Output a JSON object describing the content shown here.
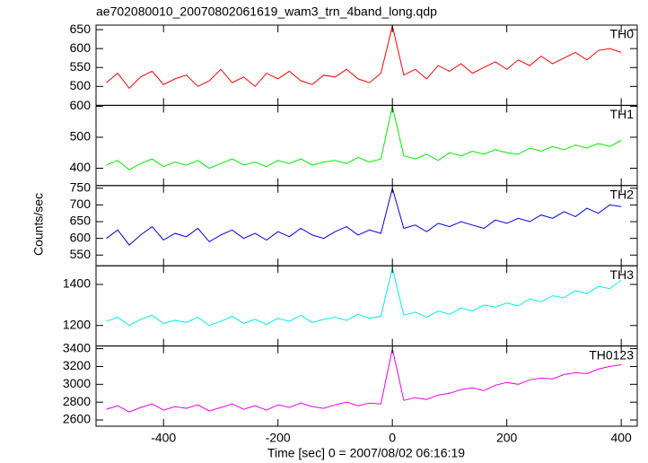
{
  "chart_data": {
    "type": "line",
    "title": "ae702080010_20070802061619_wam3_trn_4band_long.qdp",
    "xlabel": "Time [sec] 0 = 2007/08/02 06:16:19",
    "ylabel": "Counts/sec",
    "xlim": [
      -518,
      428
    ],
    "xticks": [
      -400,
      -200,
      0,
      200,
      400
    ],
    "x": [
      -500,
      -480,
      -460,
      -440,
      -420,
      -400,
      -380,
      -360,
      -340,
      -320,
      -300,
      -280,
      -260,
      -240,
      -220,
      -200,
      -180,
      -160,
      -140,
      -120,
      -100,
      -80,
      -60,
      -40,
      -20,
      0,
      20,
      40,
      60,
      80,
      100,
      120,
      140,
      160,
      180,
      200,
      220,
      240,
      260,
      280,
      300,
      320,
      340,
      360,
      380,
      400
    ],
    "series": [
      {
        "name": "TH0",
        "color": "#ff0000",
        "ylim": [
          450,
          662
        ],
        "yticks": [
          500,
          550,
          600,
          650
        ],
        "values": [
          510,
          535,
          495,
          525,
          540,
          505,
          520,
          530,
          500,
          515,
          545,
          510,
          525,
          500,
          535,
          520,
          540,
          515,
          505,
          530,
          525,
          545,
          520,
          510,
          535,
          660,
          530,
          545,
          520,
          555,
          540,
          560,
          535,
          550,
          565,
          545,
          570,
          555,
          580,
          560,
          575,
          590,
          570,
          595,
          600,
          590
        ]
      },
      {
        "name": "TH1",
        "color": "#00ee00",
        "ylim": [
          344,
          603
        ],
        "yticks": [
          400,
          500,
          600
        ],
        "values": [
          410,
          425,
          395,
          415,
          430,
          405,
          420,
          410,
          425,
          400,
          415,
          430,
          410,
          420,
          405,
          425,
          415,
          430,
          410,
          420,
          425,
          415,
          435,
          420,
          430,
          600,
          440,
          430,
          445,
          425,
          450,
          440,
          455,
          445,
          460,
          450,
          445,
          465,
          455,
          470,
          460,
          475,
          465,
          480,
          470,
          490
        ]
      },
      {
        "name": "TH2",
        "color": "#0000ee",
        "ylim": [
          518,
          758
        ],
        "yticks": [
          550,
          600,
          650,
          700,
          750
        ],
        "values": [
          600,
          625,
          580,
          610,
          635,
          595,
          615,
          605,
          630,
          590,
          610,
          625,
          600,
          615,
          595,
          620,
          605,
          630,
          610,
          600,
          620,
          635,
          610,
          625,
          615,
          750,
          630,
          640,
          620,
          645,
          635,
          650,
          640,
          630,
          655,
          645,
          660,
          650,
          670,
          660,
          680,
          665,
          690,
          675,
          700,
          695
        ]
      },
      {
        "name": "TH3",
        "color": "#00eeee",
        "ylim": [
          1100,
          1491
        ],
        "yticks": [
          1200,
          1400
        ],
        "values": [
          1220,
          1240,
          1200,
          1230,
          1250,
          1210,
          1225,
          1215,
          1240,
          1200,
          1220,
          1245,
          1210,
          1230,
          1205,
          1235,
          1220,
          1250,
          1215,
          1230,
          1240,
          1225,
          1255,
          1235,
          1245,
          1480,
          1250,
          1265,
          1240,
          1270,
          1255,
          1285,
          1270,
          1300,
          1290,
          1310,
          1295,
          1330,
          1315,
          1345,
          1335,
          1370,
          1355,
          1390,
          1380,
          1420
        ]
      },
      {
        "name": "TH0123",
        "color": "#ee00ee",
        "ylim": [
          2530,
          3430
        ],
        "yticks": [
          2600,
          2800,
          3000,
          3200,
          3400
        ],
        "values": [
          2720,
          2760,
          2690,
          2740,
          2780,
          2710,
          2750,
          2730,
          2770,
          2700,
          2740,
          2780,
          2720,
          2760,
          2710,
          2770,
          2740,
          2790,
          2750,
          2730,
          2770,
          2800,
          2760,
          2790,
          2780,
          3400,
          2820,
          2850,
          2830,
          2880,
          2900,
          2940,
          2960,
          2930,
          2990,
          3020,
          3000,
          3050,
          3070,
          3060,
          3110,
          3130,
          3120,
          3170,
          3200,
          3220
        ]
      }
    ]
  }
}
